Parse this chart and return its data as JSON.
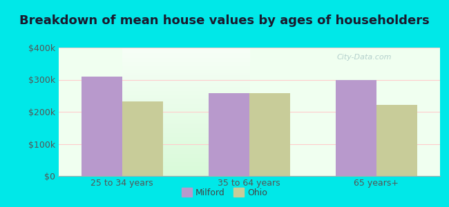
{
  "categories": [
    "25 to 34 years",
    "35 to 64 years",
    "65 years+"
  ],
  "milford_values": [
    310000,
    258000,
    298000
  ],
  "ohio_values": [
    232000,
    258000,
    222000
  ],
  "milford_color": "#b899cc",
  "ohio_color": "#c8cc99",
  "title": "Breakdown of mean house values by ages of householders",
  "ylim": [
    0,
    400000
  ],
  "yticks": [
    0,
    100000,
    200000,
    300000,
    400000
  ],
  "ytick_labels": [
    "$0",
    "$100k",
    "$200k",
    "$300k",
    "$400k"
  ],
  "legend_labels": [
    "Milford",
    "Ohio"
  ],
  "outer_bg": "#00e8e8",
  "title_fontsize": 13,
  "tick_fontsize": 9,
  "legend_fontsize": 9,
  "bar_width": 0.32,
  "watermark": "City-Data.com"
}
